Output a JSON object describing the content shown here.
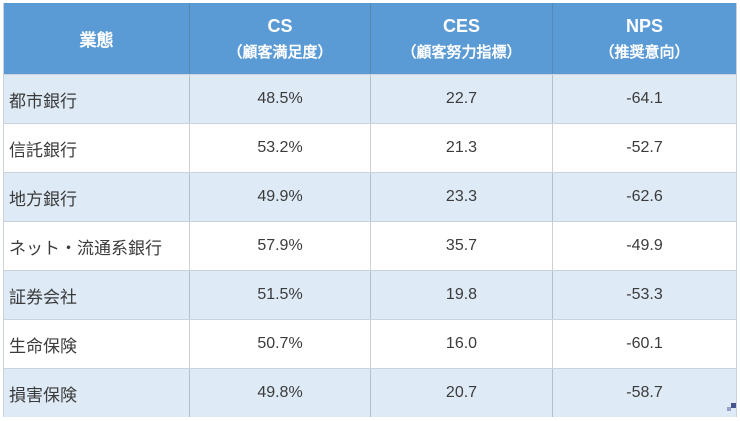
{
  "table": {
    "header": {
      "col0": "業態",
      "col1_line1": "CS",
      "col1_line2": "（顧客満足度）",
      "col2_line1": "CES",
      "col2_line2": "（顧客努力指標）",
      "col3_line1": "NPS",
      "col3_line2": "（推奨意向）"
    },
    "rows": [
      {
        "label": "都市銀行",
        "cs": "48.5%",
        "ces": "22.7",
        "nps": "-64.1"
      },
      {
        "label": "信託銀行",
        "cs": "53.2%",
        "ces": "21.3",
        "nps": "-52.7"
      },
      {
        "label": "地方銀行",
        "cs": "49.9%",
        "ces": "23.3",
        "nps": "-62.6"
      },
      {
        "label": "ネット・流通系銀行",
        "cs": "57.9%",
        "ces": "35.7",
        "nps": "-49.9"
      },
      {
        "label": "証券会社",
        "cs": "51.5%",
        "ces": "19.8",
        "nps": "-53.3"
      },
      {
        "label": "生命保険",
        "cs": "50.7%",
        "ces": "16.0",
        "nps": "-60.1"
      },
      {
        "label": "損害保険",
        "cs": "49.8%",
        "ces": "20.7",
        "nps": "-58.7"
      }
    ],
    "colors": {
      "header_bg": "#5B9BD5",
      "header_text": "#FFFFFF",
      "row_bg": "#FFFFFF",
      "row_alt_bg": "#DEEAF6",
      "body_text": "#3B3B3B",
      "grid_line": "#CCD2D9",
      "corner_handle_dark": "#44548C",
      "corner_handle_light": "#95A3C6"
    }
  },
  "chart_data": {
    "type": "table",
    "title": "",
    "columns": [
      "業態",
      "CS（顧客満足度）",
      "CES（顧客努力指標）",
      "NPS（推奨意向）"
    ],
    "rows": [
      [
        "都市銀行",
        "48.5%",
        22.7,
        -64.1
      ],
      [
        "信託銀行",
        "53.2%",
        21.3,
        -52.7
      ],
      [
        "地方銀行",
        "49.9%",
        23.3,
        -62.6
      ],
      [
        "ネット・流通系銀行",
        "57.9%",
        35.7,
        -49.9
      ],
      [
        "証券会社",
        "51.5%",
        19.8,
        -53.3
      ],
      [
        "生命保険",
        "50.7%",
        16.0,
        -60.1
      ],
      [
        "損害保険",
        "49.8%",
        20.7,
        -58.7
      ]
    ]
  }
}
